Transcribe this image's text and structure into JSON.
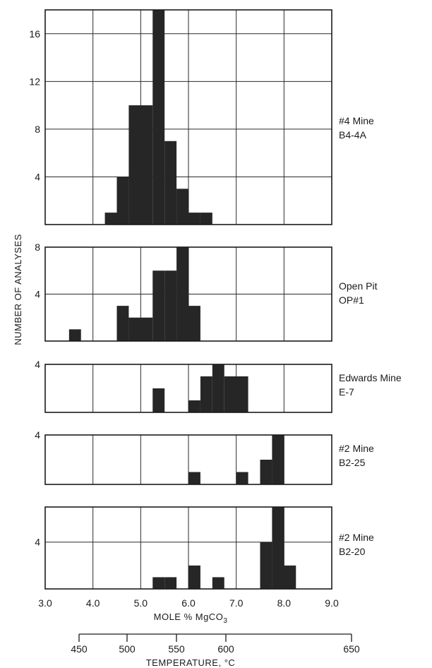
{
  "chart_data": {
    "type": "bar",
    "ylabel": "NUMBER OF ANALYSES",
    "xlabel": "MOLE % MgCO",
    "xlabel_subscript": "3",
    "xlim": [
      3.0,
      9.0
    ],
    "x_ticks": [
      "3.0",
      "4.0",
      "5.0",
      "6.0",
      "7.0",
      "8.0",
      "9.0"
    ],
    "bin_width": 0.25,
    "secondary_axis": {
      "label": "TEMPERATURE, °C",
      "ticks": [
        "450",
        "500",
        "550",
        "600",
        "650"
      ]
    },
    "panels": [
      {
        "label_line1": "#4 Mine",
        "label_line2": "B4-4A",
        "ylim": [
          0,
          18
        ],
        "y_ticks": [
          4,
          8,
          12,
          16
        ],
        "bars": [
          {
            "x": 4.25,
            "value": 1
          },
          {
            "x": 4.5,
            "value": 4
          },
          {
            "x": 4.75,
            "value": 10
          },
          {
            "x": 5.0,
            "value": 10
          },
          {
            "x": 5.25,
            "value": 18
          },
          {
            "x": 5.5,
            "value": 7
          },
          {
            "x": 5.75,
            "value": 3
          },
          {
            "x": 6.0,
            "value": 1
          },
          {
            "x": 6.25,
            "value": 1
          }
        ]
      },
      {
        "label_line1": "Open Pit",
        "label_line2": "OP#1",
        "ylim": [
          0,
          8
        ],
        "y_ticks": [
          4,
          8
        ],
        "bars": [
          {
            "x": 3.5,
            "value": 1
          },
          {
            "x": 4.5,
            "value": 3
          },
          {
            "x": 4.75,
            "value": 2
          },
          {
            "x": 5.0,
            "value": 2
          },
          {
            "x": 5.25,
            "value": 6
          },
          {
            "x": 5.5,
            "value": 6
          },
          {
            "x": 5.75,
            "value": 8
          },
          {
            "x": 6.0,
            "value": 3
          }
        ]
      },
      {
        "label_line1": "Edwards Mine",
        "label_line2": "E-7",
        "ylim": [
          0,
          4
        ],
        "y_ticks": [
          4
        ],
        "bars": [
          {
            "x": 5.25,
            "value": 2
          },
          {
            "x": 6.0,
            "value": 1
          },
          {
            "x": 6.25,
            "value": 3
          },
          {
            "x": 6.5,
            "value": 4
          },
          {
            "x": 6.75,
            "value": 3
          },
          {
            "x": 7.0,
            "value": 3
          }
        ]
      },
      {
        "label_line1": "#2 Mine",
        "label_line2": "B2-25",
        "ylim": [
          0,
          4
        ],
        "y_ticks": [
          4
        ],
        "bars": [
          {
            "x": 6.0,
            "value": 1
          },
          {
            "x": 7.0,
            "value": 1
          },
          {
            "x": 7.5,
            "value": 2
          },
          {
            "x": 7.75,
            "value": 4
          }
        ]
      },
      {
        "label_line1": "#2 Mine",
        "label_line2": "B2-20",
        "ylim": [
          0,
          7
        ],
        "y_ticks": [
          4
        ],
        "bars": [
          {
            "x": 5.25,
            "value": 1
          },
          {
            "x": 5.5,
            "value": 1
          },
          {
            "x": 6.0,
            "value": 2
          },
          {
            "x": 6.5,
            "value": 1
          },
          {
            "x": 7.5,
            "value": 4
          },
          {
            "x": 7.75,
            "value": 7
          },
          {
            "x": 8.0,
            "value": 2
          }
        ]
      }
    ]
  }
}
